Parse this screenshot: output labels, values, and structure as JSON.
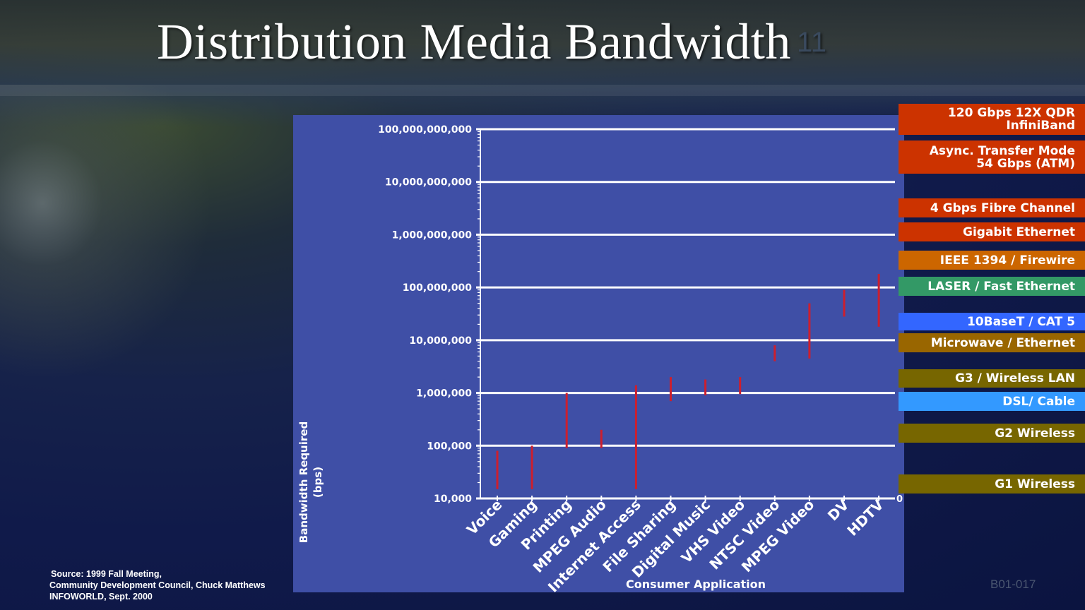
{
  "slide": {
    "title": "Distribution Media Bandwidth",
    "title_number": "11",
    "slide_id": "B01-017",
    "source_lines": [
      "Source:  1999 Fall Meeting,",
      "Community Development Council, Chuck Matthews",
      "INFOWORLD, Sept. 2000"
    ]
  },
  "legend": {
    "items": [
      {
        "lines": [
          "120 Gbps 12X QDR",
          "InfiniBand"
        ],
        "color": "#cc3300"
      },
      {
        "lines": [
          "Async. Transfer Mode",
          "54 Gbps (ATM)"
        ],
        "color": "#cc3300"
      },
      {
        "lines": [
          "4 Gbps Fibre Channel"
        ],
        "color": "#cc3300"
      },
      {
        "lines": [
          "Gigabit Ethernet"
        ],
        "color": "#cc3300"
      },
      {
        "lines": [
          "IEEE 1394 / Firewire"
        ],
        "color": "#cc6600"
      },
      {
        "lines": [
          "LASER / Fast Ethernet"
        ],
        "color": "#339966"
      },
      {
        "lines": [
          "10BaseT / CAT 5"
        ],
        "color": "#3366ff"
      },
      {
        "lines": [
          "Microwave / Ethernet"
        ],
        "color": "#996600"
      },
      {
        "lines": [
          "G3 / Wireless LAN"
        ],
        "color": "#776600"
      },
      {
        "lines": [
          "DSL/ Cable"
        ],
        "color": "#3399ff"
      },
      {
        "lines": [
          "G2 Wireless"
        ],
        "color": "#776600"
      },
      {
        "lines": [
          "G1 Wireless"
        ],
        "color": "#776600"
      }
    ]
  },
  "chart_data": {
    "type": "bar",
    "subtype": "floating-range",
    "scale": "log",
    "ylabel": "Bandwidth Required\n(bps)",
    "xlabel": "Consumer Application",
    "ylim": [
      10000,
      100000000000
    ],
    "y_ticks": [
      "10,000",
      "100,000",
      "1,000,000",
      "10,000,000",
      "100,000,000",
      "1,000,000,000",
      "10,000,000,000",
      "100,000,000,000"
    ],
    "y_tick_values": [
      10000,
      100000,
      1000000,
      10000000,
      100000000,
      1000000000,
      10000000000,
      100000000000
    ],
    "x_end_tick": "0",
    "grid": true,
    "categories": [
      "Voice",
      "Gaming",
      "Printing",
      "MPEG Audio",
      "Internet Access",
      "File Sharing",
      "Digital Music",
      "VHS Video",
      "NTSC Video",
      "MPEG Video",
      "DV",
      "HDTV"
    ],
    "ranges": [
      [
        15000,
        80000
      ],
      [
        15000,
        100000
      ],
      [
        90000,
        1000000
      ],
      [
        90000,
        200000
      ],
      [
        15000,
        1400000
      ],
      [
        700000,
        2000000
      ],
      [
        900000,
        1800000
      ],
      [
        950000,
        2000000
      ],
      [
        4000000,
        8000000
      ],
      [
        4500000,
        50000000
      ],
      [
        28000000,
        90000000
      ],
      [
        18000000,
        180000000
      ]
    ],
    "bar_color": "#cc1f2e"
  }
}
